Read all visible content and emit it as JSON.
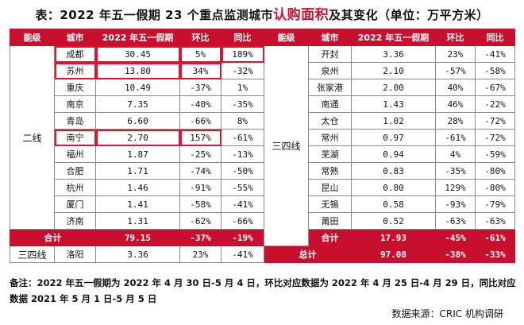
{
  "title": {
    "prefix": "表：2022 年五一假期 23 个重点监测城市",
    "highlight": "认购面积",
    "suffix": "及其变化（单位：万平方米）"
  },
  "headers": [
    "能级",
    "城市",
    "2022 年五一假期",
    "环比",
    "同比",
    "能级",
    "城市",
    "2022 年五一假期",
    "环比",
    "同比"
  ],
  "left": {
    "tier": "二线",
    "rows": [
      {
        "city": "成都",
        "value": "30.45",
        "mom": "5%",
        "yoy": "189%"
      },
      {
        "city": "苏州",
        "value": "13.80",
        "mom": "34%",
        "yoy": "-32%"
      },
      {
        "city": "重庆",
        "value": "10.49",
        "mom": "-37%",
        "yoy": "1%"
      },
      {
        "city": "南京",
        "value": "7.35",
        "mom": "-40%",
        "yoy": "-35%"
      },
      {
        "city": "青岛",
        "value": "6.60",
        "mom": "-66%",
        "yoy": "8%"
      },
      {
        "city": "南宁",
        "value": "2.70",
        "mom": "157%",
        "yoy": "-61%"
      },
      {
        "city": "福州",
        "value": "1.87",
        "mom": "-25%",
        "yoy": "-13%"
      },
      {
        "city": "合肥",
        "value": "1.71",
        "mom": "-74%",
        "yoy": "-50%"
      },
      {
        "city": "杭州",
        "value": "1.46",
        "mom": "-91%",
        "yoy": "-55%"
      },
      {
        "city": "厦门",
        "value": "1.41",
        "mom": "-58%",
        "yoy": "-41%"
      },
      {
        "city": "济南",
        "value": "1.31",
        "mom": "-62%",
        "yoy": "-66%"
      }
    ],
    "total": {
      "label": "合计",
      "value": "79.15",
      "mom": "-37%",
      "yoy": "-19%"
    },
    "extra": {
      "tier": "三四线",
      "city": "洛阳",
      "value": "3.36",
      "mom": "23%",
      "yoy": "-41%"
    }
  },
  "right": {
    "tier": "三四线",
    "rows": [
      {
        "city": "开封",
        "value": "3.36",
        "mom": "23%",
        "yoy": "-41%"
      },
      {
        "city": "泉州",
        "value": "2.10",
        "mom": "-57%",
        "yoy": "-58%"
      },
      {
        "city": "张家港",
        "value": "2.00",
        "mom": "40%",
        "yoy": "-67%"
      },
      {
        "city": "南通",
        "value": "1.43",
        "mom": "46%",
        "yoy": "-22%"
      },
      {
        "city": "太仓",
        "value": "1.02",
        "mom": "28%",
        "yoy": "-72%"
      },
      {
        "city": "常州",
        "value": "0.97",
        "mom": "-61%",
        "yoy": "-72%"
      },
      {
        "city": "芜湖",
        "value": "0.94",
        "mom": "4%",
        "yoy": "-59%"
      },
      {
        "city": "常熟",
        "value": "0.83",
        "mom": "-35%",
        "yoy": "-80%"
      },
      {
        "city": "昆山",
        "value": "0.80",
        "mom": "129%",
        "yoy": "-80%"
      },
      {
        "city": "无锡",
        "value": "0.58",
        "mom": "-93%",
        "yoy": "-79%"
      },
      {
        "city": "莆田",
        "value": "0.52",
        "mom": "-63%",
        "yoy": "-63%"
      }
    ],
    "total": {
      "label": "合计",
      "value": "17.93",
      "mom": "-45%",
      "yoy": "-61%"
    }
  },
  "grand_total": {
    "label": "总计",
    "value": "97.08",
    "mom": "-38%",
    "yoy": "-33%"
  },
  "note": "备注：2022 年五一假期为 2022 年 4 月 30 日-5 月 4 日，环比对应数据为 2022 年 4 月 25 日-4 月 29 日，同比对应数据 2021 年 5 月 1 日-5 月 5 日",
  "source": "数据来源：CRIC 机构调研",
  "accent_color": "#c8102e"
}
